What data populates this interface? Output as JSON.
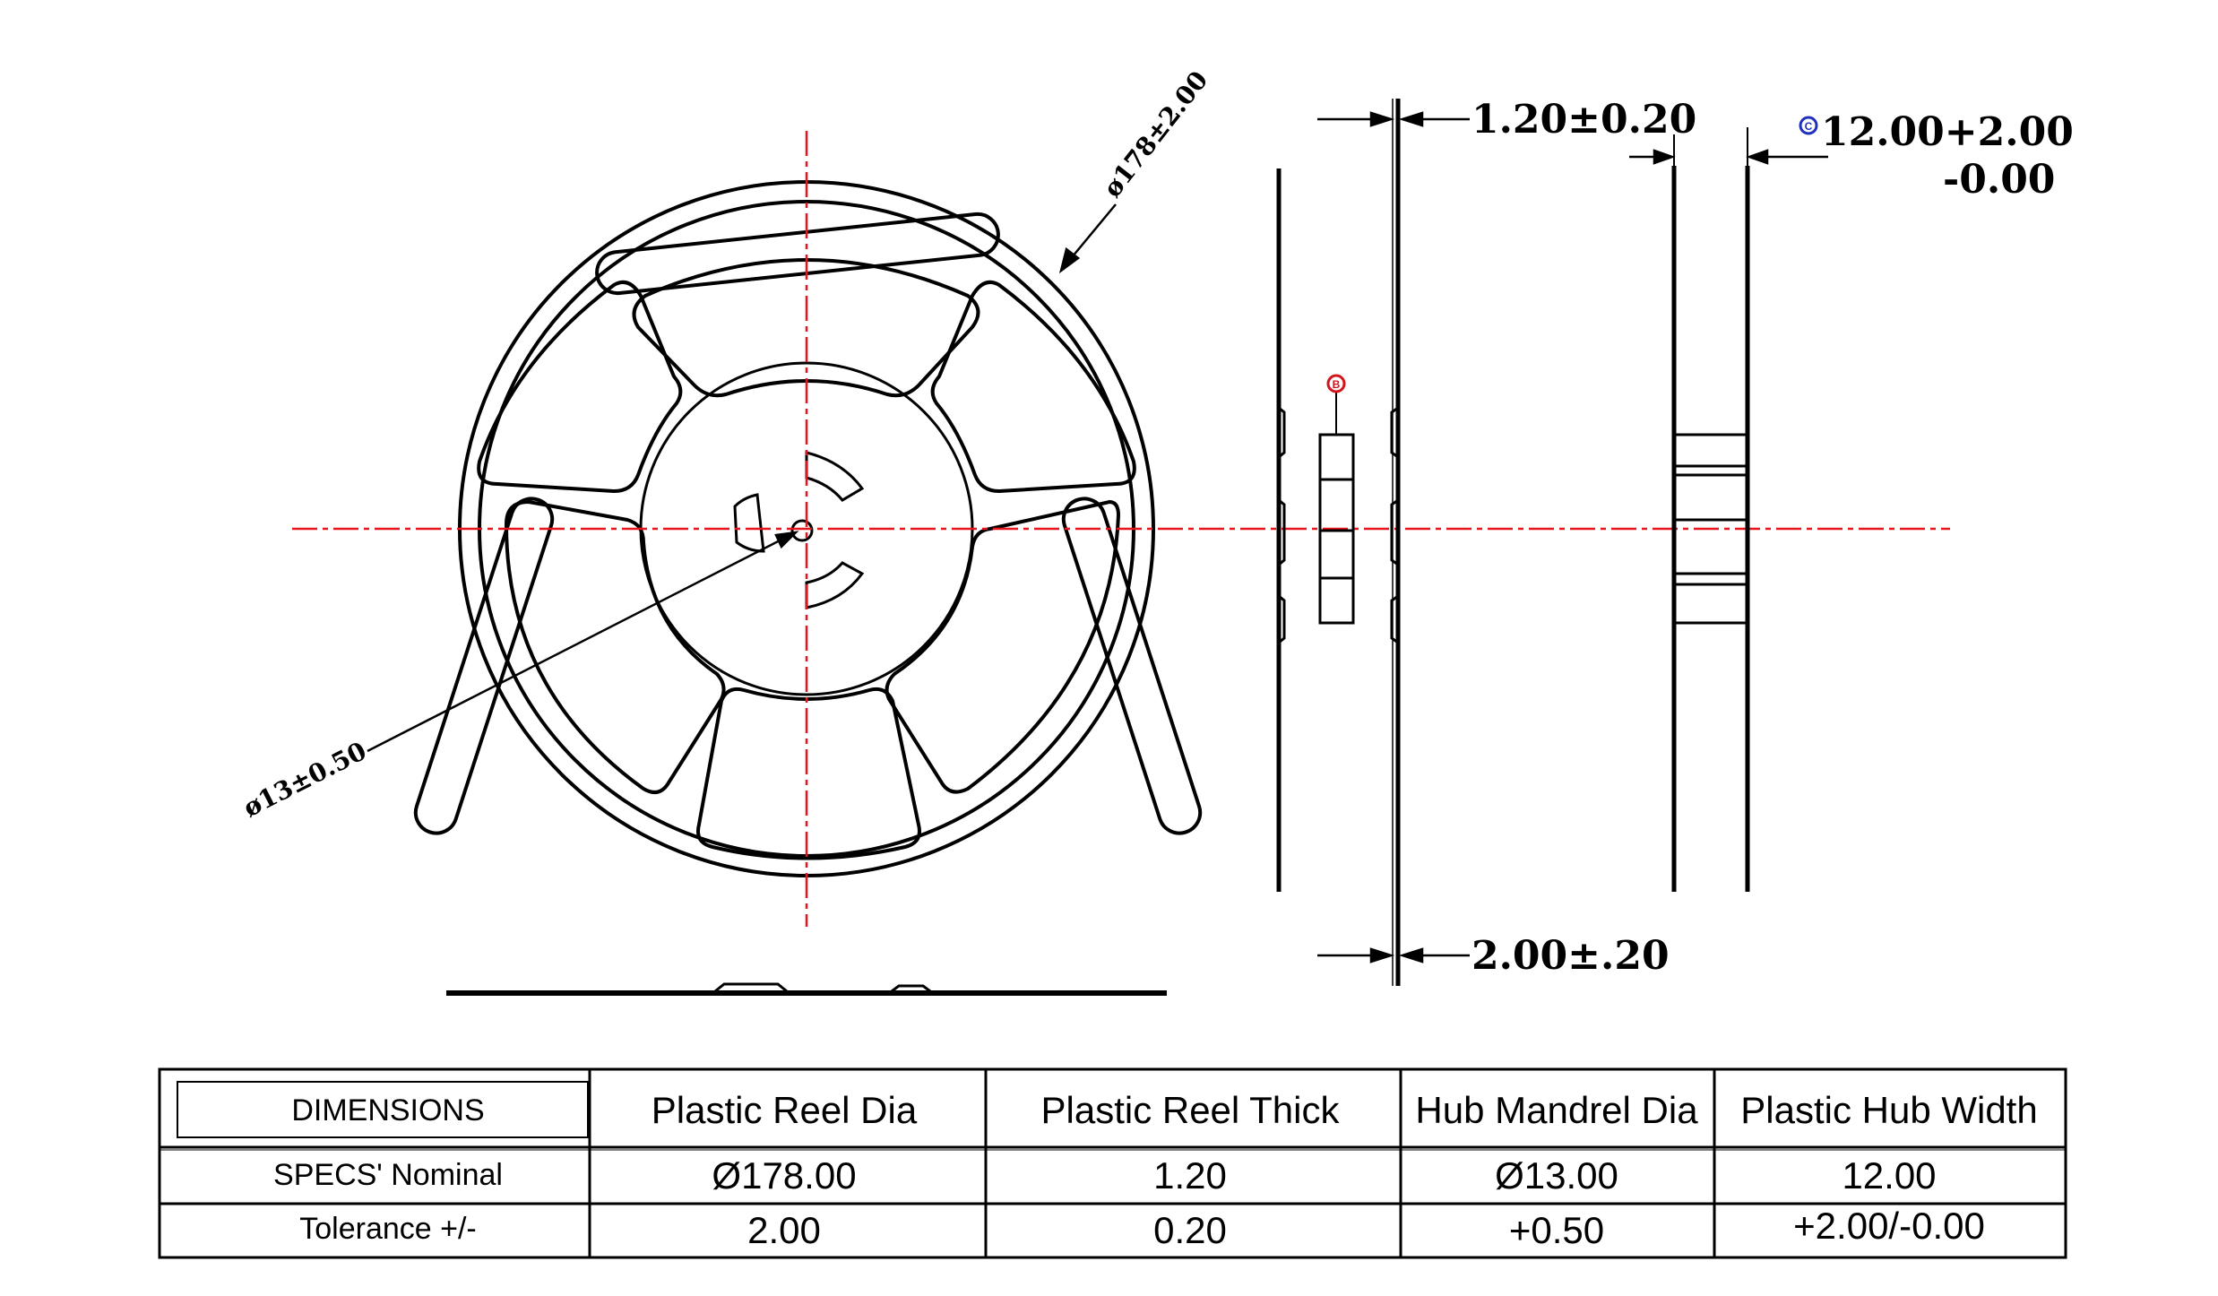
{
  "annotations": {
    "reel_dia": "ø178±2.00",
    "hub_dia": "ø13±0.50",
    "thickness_top": "1.20±0.20",
    "thickness_bottom": "2.00±.20",
    "hub_width_upper": "12.00+2.00",
    "hub_width_lower": "-0.00",
    "marker_b": "B",
    "marker_c": "C"
  },
  "table": {
    "headers": [
      "DIMENSIONS",
      "Plastic Reel Dia",
      "Plastic Reel Thick",
      "Hub Mandrel Dia",
      "Plastic Hub Width"
    ],
    "rows": [
      [
        "SPECS' Nominal",
        "Ø178.00",
        "1.20",
        "Ø13.00",
        "12.00"
      ],
      [
        "Tolerance +/-",
        "2.00",
        "0.20",
        "+0.50",
        "+2.00/-0.00"
      ]
    ]
  },
  "colors": {
    "line": "#000000",
    "centerline": "#e8141c",
    "marker_b": "#d4141c",
    "marker_c": "#1f2fbf"
  }
}
